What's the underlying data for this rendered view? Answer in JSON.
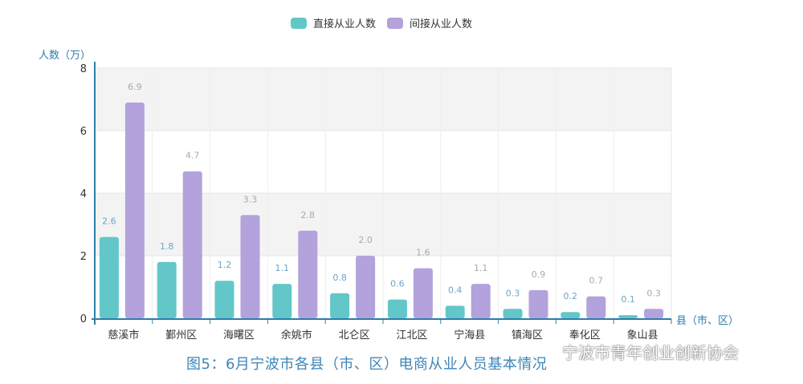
{
  "chart_data": {
    "type": "bar",
    "ylabel": "人数（万）",
    "xlabel": "县（市、区）",
    "ylim": [
      0,
      8
    ],
    "yticks": [
      0,
      2,
      4,
      6,
      8
    ],
    "legend_position": "top-center",
    "categories": [
      "慈溪市",
      "鄞州区",
      "海曙区",
      "余姚市",
      "北仑区",
      "江北区",
      "宁海县",
      "镇海区",
      "奉化区",
      "象山县"
    ],
    "series": [
      {
        "name": "直接从业人数",
        "color": "#63c7c9",
        "values": [
          2.6,
          1.8,
          1.2,
          1.1,
          0.8,
          0.6,
          0.4,
          0.3,
          0.2,
          0.1
        ]
      },
      {
        "name": "间接从业人数",
        "color": "#b3a2db",
        "values": [
          6.9,
          4.7,
          3.3,
          2.8,
          2.0,
          1.6,
          1.1,
          0.9,
          0.7,
          0.3
        ]
      }
    ],
    "series_label_colors": [
      "#6aa6c8",
      "#aaaaaa"
    ],
    "axis_color": "#2e7dab",
    "band_color": "#f3f3f3"
  },
  "caption": "图5：6月宁波市各县（市、区）电商从业人员基本情况",
  "watermark": "宁波市青年创业创新协会"
}
